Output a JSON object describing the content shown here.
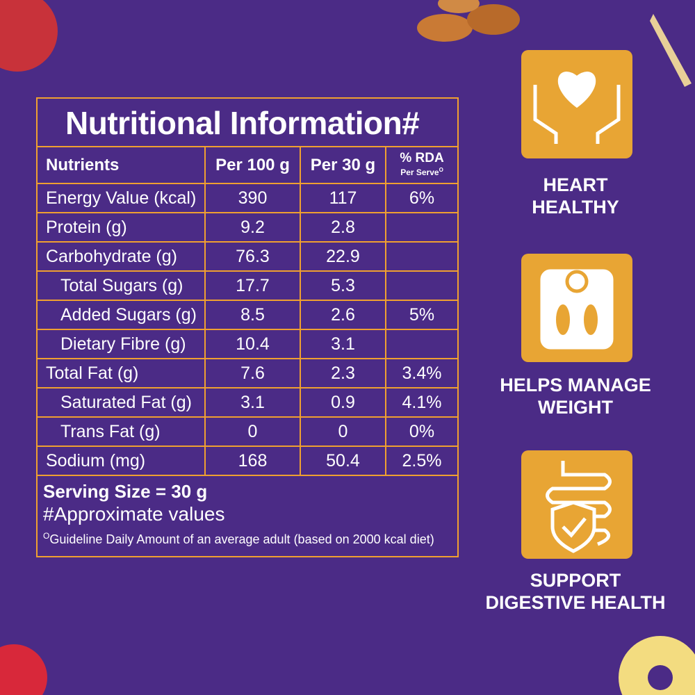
{
  "table": {
    "title": "Nutritional Information#",
    "header": {
      "nutrients": "Nutrients",
      "per100": "Per 100 g",
      "per30": "Per 30 g",
      "rda": "% RDA",
      "rda_sub": "Per Serve",
      "rda_mark": "O"
    },
    "rows": [
      {
        "label": "Energy Value (kcal)",
        "per100": "390",
        "per30": "117",
        "rda": "6%",
        "indent": false
      },
      {
        "label": "Protein (g)",
        "per100": "9.2",
        "per30": "2.8",
        "rda": null,
        "indent": false
      },
      {
        "label": "Carbohydrate (g)",
        "per100": "76.3",
        "per30": "22.9",
        "rda": null,
        "indent": false
      },
      {
        "label": "Total Sugars (g)",
        "per100": "17.7",
        "per30": "5.3",
        "rda": null,
        "indent": true
      },
      {
        "label": "Added Sugars (g)",
        "per100": "8.5",
        "per30": "2.6",
        "rda": "5%",
        "indent": true
      },
      {
        "label": "Dietary Fibre (g)",
        "per100": "10.4",
        "per30": "3.1",
        "rda": null,
        "indent": true
      },
      {
        "label": "Total Fat (g)",
        "per100": "7.6",
        "per30": "2.3",
        "rda": "3.4%",
        "indent": false
      },
      {
        "label": "Saturated Fat (g)",
        "per100": "3.1",
        "per30": "0.9",
        "rda": "4.1%",
        "indent": true
      },
      {
        "label": "Trans Fat (g)",
        "per100": "0",
        "per30": "0",
        "rda": "0%",
        "indent": true
      },
      {
        "label": "Sodium (mg)",
        "per100": "168",
        "per30": "50.4",
        "rda": "2.5%",
        "indent": false
      }
    ],
    "footer": {
      "serving": "Serving Size = 30 g",
      "approx": "#Approximate values",
      "note_mark": "O",
      "note": "Guideline Daily Amount of an average adult (based on 2000 kcal diet)"
    }
  },
  "benefits": [
    {
      "line1": "HEART",
      "line2": "HEALTHY"
    },
    {
      "line1": "HELPS MANAGE",
      "line2": "WEIGHT"
    },
    {
      "line1": "SUPPORT",
      "line2": "DIGESTIVE HEALTH"
    }
  ]
}
